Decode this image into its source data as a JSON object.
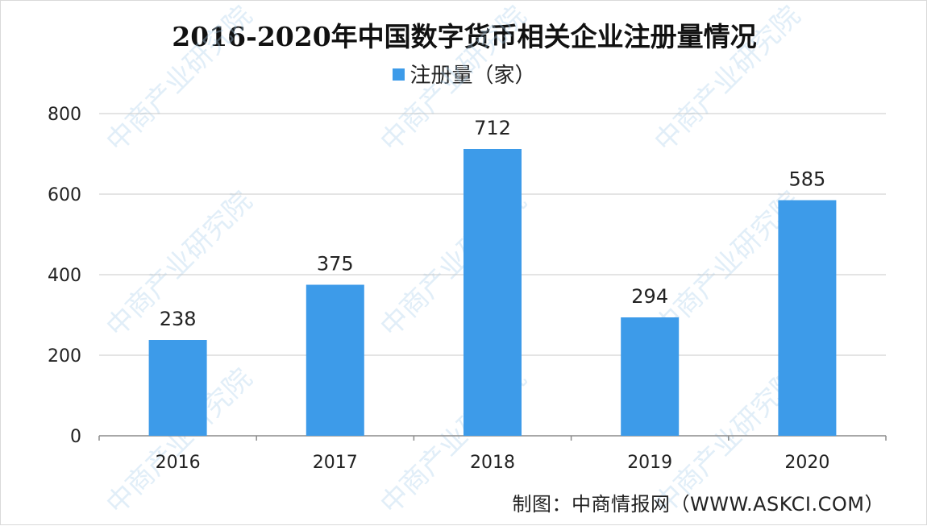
{
  "chart_data": {
    "type": "bar",
    "title": "2016-2020年中国数字货币相关企业注册量情况",
    "categories": [
      "2016",
      "2017",
      "2018",
      "2019",
      "2020"
    ],
    "series": [
      {
        "name": "注册量（家）",
        "values": [
          238,
          375,
          712,
          294,
          585
        ]
      }
    ],
    "data_labels": [
      "238",
      "375",
      "712",
      "294",
      "585"
    ],
    "ylim": [
      0,
      800
    ],
    "yticks": [
      "0",
      "200",
      "400",
      "600",
      "800"
    ],
    "xlabel": "",
    "ylabel": "",
    "grid": true,
    "legend_position": "top-center",
    "bar_color": "#3d9be9"
  },
  "footer": {
    "credit": "制图：中商情报网（WWW.ASKCI.COM）"
  },
  "watermark": {
    "text": "中商产业研究院"
  }
}
